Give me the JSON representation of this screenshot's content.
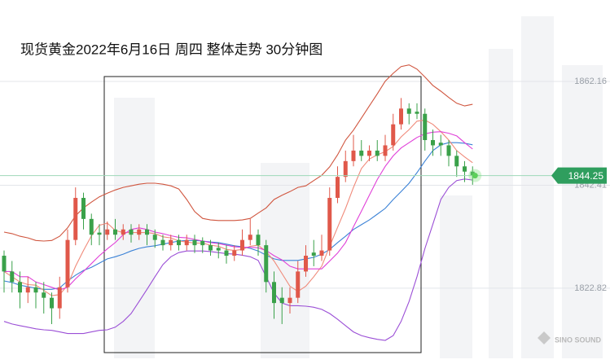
{
  "chart_data": {
    "type": "candlestick",
    "title": "现货黄金2022年6月16日 周四 整体走势 30分钟图",
    "ylim": [
      1808.4,
      1877.65
    ],
    "yticks": [
      1862.16,
      1842.41,
      1822.82
    ],
    "up_color": "#e0584a",
    "down_color": "#3aa14a",
    "last_price": 1844.25,
    "last_price_color": "#2f9e5e",
    "logo": "SINO SOUND",
    "candles": [
      [
        1829,
        1830,
        1822,
        1826
      ],
      [
        1826,
        1828,
        1822,
        1824
      ],
      [
        1824,
        1826,
        1819,
        1822
      ],
      [
        1822,
        1825,
        1820,
        1823
      ],
      [
        1823,
        1824,
        1819,
        1822
      ],
      [
        1822,
        1824,
        1818,
        1821
      ],
      [
        1821,
        1822,
        1816,
        1819
      ],
      [
        1819,
        1825,
        1817,
        1823
      ],
      [
        1823,
        1834,
        1822,
        1832
      ],
      [
        1832,
        1842,
        1831,
        1840
      ],
      [
        1840,
        1841,
        1834,
        1836
      ],
      [
        1836,
        1837,
        1831,
        1833
      ],
      [
        1833.4,
        1835,
        1831,
        1833
      ],
      [
        1833,
        1835.5,
        1832,
        1834
      ],
      [
        1834,
        1836,
        1832,
        1833
      ],
      [
        1833,
        1835,
        1832,
        1834
      ],
      [
        1834,
        1835,
        1831.5,
        1833
      ],
      [
        1833,
        1835,
        1832,
        1834
      ],
      [
        1834,
        1835,
        1831,
        1833
      ],
      [
        1833,
        1834,
        1830.5,
        1832
      ],
      [
        1832,
        1833,
        1830,
        1831
      ],
      [
        1831,
        1833,
        1830,
        1832
      ],
      [
        1832,
        1833,
        1830,
        1831
      ],
      [
        1831,
        1833,
        1830,
        1832
      ],
      [
        1832,
        1833,
        1829.5,
        1831
      ],
      [
        1831.8,
        1832.5,
        1829.5,
        1831
      ],
      [
        1831,
        1832,
        1829,
        1830
      ],
      [
        1830.5,
        1831.5,
        1828.5,
        1830
      ],
      [
        1830,
        1831,
        1827.5,
        1829
      ],
      [
        1829,
        1831,
        1828,
        1830
      ],
      [
        1830,
        1834,
        1829,
        1832
      ],
      [
        1832,
        1836,
        1831,
        1833
      ],
      [
        1833,
        1834,
        1829,
        1831
      ],
      [
        1831,
        1832,
        1822,
        1824
      ],
      [
        1824,
        1826,
        1817,
        1820
      ],
      [
        1821,
        1823,
        1816,
        1820
      ],
      [
        1820,
        1823,
        1818,
        1821
      ],
      [
        1821,
        1828,
        1820,
        1826
      ],
      [
        1826,
        1831,
        1825,
        1829
      ],
      [
        1829.6,
        1832,
        1827,
        1829
      ],
      [
        1829,
        1833,
        1828,
        1830
      ],
      [
        1830,
        1842,
        1829,
        1840
      ],
      [
        1840,
        1846,
        1839,
        1844
      ],
      [
        1844,
        1849,
        1843,
        1847
      ],
      [
        1847,
        1852,
        1846,
        1849
      ],
      [
        1849,
        1851,
        1847,
        1848
      ],
      [
        1848,
        1850,
        1847,
        1849
      ],
      [
        1849,
        1851,
        1847,
        1848
      ],
      [
        1848,
        1852,
        1847,
        1850
      ],
      [
        1850,
        1856,
        1849,
        1854
      ],
      [
        1854,
        1859,
        1853,
        1857
      ],
      [
        1857,
        1858,
        1854,
        1856
      ],
      [
        1856.4,
        1858,
        1855,
        1856
      ],
      [
        1856,
        1857,
        1849,
        1851
      ],
      [
        1851,
        1853,
        1848,
        1850
      ],
      [
        1850.5,
        1852,
        1848,
        1850
      ],
      [
        1850,
        1851,
        1846,
        1848
      ],
      [
        1848,
        1849,
        1844,
        1846
      ],
      [
        1846,
        1847,
        1843,
        1845
      ],
      [
        1845,
        1846,
        1842.5,
        1844.3
      ]
    ],
    "series": [
      {
        "color": "#d0563f",
        "values": [
          1833.5,
          1833.2,
          1832.7,
          1832.4,
          1831.9,
          1831.8,
          1831.9,
          1832.7,
          1834.3,
          1836.6,
          1838.1,
          1839.2,
          1840.2,
          1840.9,
          1841.5,
          1842.0,
          1842.3,
          1842.6,
          1842.8,
          1842.8,
          1842.6,
          1842.3,
          1841.7,
          1839.7,
          1837.4,
          1836.1,
          1835.8,
          1835.7,
          1835.7,
          1835.7,
          1835.8,
          1836.1,
          1837.1,
          1838.1,
          1839.7,
          1840.5,
          1841.2,
          1842.0,
          1842.3,
          1843.3,
          1844.3,
          1845.9,
          1848.2,
          1851.0,
          1852.9,
          1855.2,
          1857.5,
          1859.8,
          1862.2,
          1863.7,
          1865.0,
          1865.3,
          1864.5,
          1863.0,
          1861.4,
          1860.3,
          1859.1,
          1858.0,
          1857.5,
          1857.8
        ]
      },
      {
        "color": "#3b82d6",
        "values": [
          1824.2,
          1823.9,
          1823.4,
          1823.1,
          1822.8,
          1822.6,
          1822.6,
          1822.9,
          1824.2,
          1825.3,
          1826.2,
          1826.8,
          1827.6,
          1828.4,
          1828.8,
          1829.3,
          1829.9,
          1830.4,
          1830.7,
          1830.9,
          1831.2,
          1831.5,
          1831.8,
          1831.9,
          1831.9,
          1831.8,
          1831.6,
          1831.5,
          1831.2,
          1830.9,
          1830.7,
          1830.4,
          1829.9,
          1829.1,
          1828.4,
          1828.1,
          1828.1,
          1828.1,
          1828.4,
          1828.7,
          1829.3,
          1830.2,
          1831.5,
          1832.7,
          1834.0,
          1834.9,
          1835.8,
          1836.9,
          1838.0,
          1839.7,
          1841.2,
          1842.8,
          1844.8,
          1847.0,
          1849.0,
          1850.1,
          1850.5,
          1850.5,
          1850.4,
          1850.1
        ]
      },
      {
        "color": "#9b4fd6",
        "values": [
          1816.5,
          1816.0,
          1815.7,
          1815.4,
          1815.1,
          1814.9,
          1814.8,
          1814.5,
          1814.2,
          1814.2,
          1814.2,
          1814.5,
          1814.8,
          1814.9,
          1815.4,
          1816.5,
          1818.0,
          1820.3,
          1822.6,
          1825.0,
          1827.3,
          1828.8,
          1829.6,
          1829.9,
          1829.9,
          1829.9,
          1829.8,
          1829.6,
          1829.4,
          1829.3,
          1829.1,
          1828.8,
          1828.1,
          1825.0,
          1821.9,
          1820.0,
          1819.5,
          1819.5,
          1819.4,
          1819.2,
          1818.8,
          1818.0,
          1816.9,
          1815.7,
          1814.5,
          1813.8,
          1813.4,
          1813.1,
          1812.9,
          1813.8,
          1816.5,
          1820.3,
          1825.0,
          1830.4,
          1835.0,
          1839.7,
          1842.0,
          1843.3,
          1843.6,
          1843.4
        ]
      },
      {
        "color": "#f08a7a",
        "values": [
          1826,
          1825,
          1824,
          1823.5,
          1823.4,
          1822.4,
          1821.4,
          1821.6,
          1823.4,
          1827,
          1830,
          1832.8,
          1834.8,
          1835.2,
          1833.8,
          1833.4,
          1833.4,
          1833.4,
          1833.4,
          1833.2,
          1832.6,
          1832.4,
          1831.8,
          1831.6,
          1831.4,
          1831.4,
          1831,
          1830.8,
          1830.2,
          1830,
          1830.2,
          1830.8,
          1831,
          1829.8,
          1828,
          1825.6,
          1823.2,
          1822.2,
          1823.2,
          1825,
          1827,
          1830.8,
          1834.4,
          1838,
          1842,
          1845.6,
          1847.4,
          1848.2,
          1848.8,
          1849.8,
          1851.6,
          1853,
          1854.6,
          1854.8,
          1854,
          1852.6,
          1851,
          1849,
          1847.8,
          1846.7
        ]
      },
      {
        "color": "#e040d8",
        "values": [
          1826,
          1826,
          1825,
          1825,
          1824,
          1823.5,
          1823,
          1822.5,
          1823,
          1824.6,
          1826,
          1827.5,
          1829,
          1830.3,
          1831.5,
          1833,
          1834,
          1834.3,
          1834,
          1833.5,
          1833.2,
          1832.8,
          1832.5,
          1832.4,
          1832.1,
          1831.8,
          1831.5,
          1831.3,
          1831,
          1830.7,
          1830.6,
          1830.6,
          1830.5,
          1830,
          1829,
          1828.2,
          1827,
          1826.5,
          1826.5,
          1826.5,
          1826.5,
          1828,
          1829.5,
          1831.5,
          1834.5,
          1837.5,
          1840.5,
          1843.5,
          1846,
          1848,
          1849.5,
          1850.5,
          1851.5,
          1852.2,
          1852.5,
          1852.6,
          1852.3,
          1851.8,
          1850.5,
          1849.3
        ]
      }
    ]
  }
}
